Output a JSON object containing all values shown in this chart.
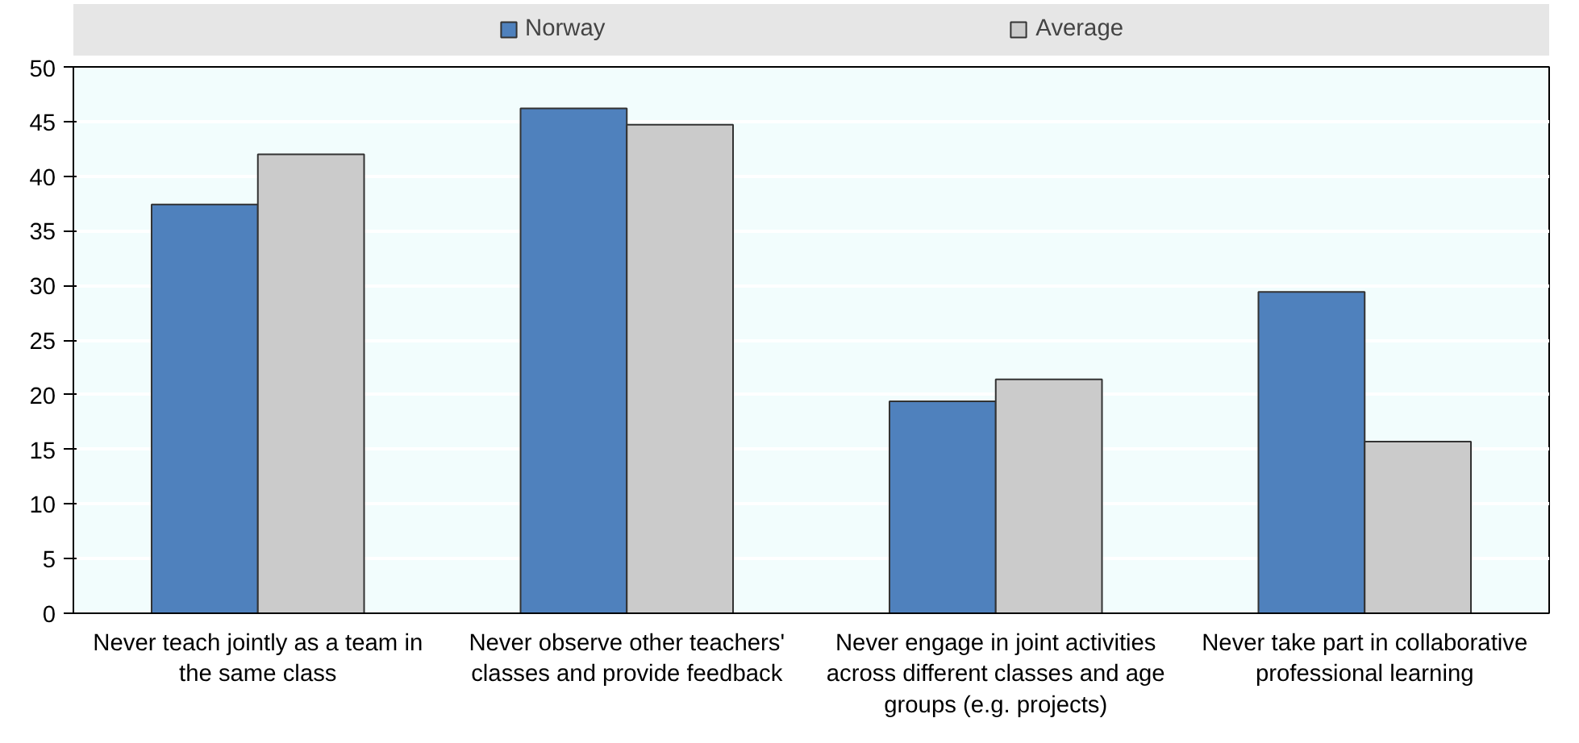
{
  "chart_data": {
    "type": "bar",
    "categories": [
      "Never teach jointly as a team in the same class",
      "Never observe other teachers' classes and provide feedback",
      "Never engage in joint activities across different classes and age groups (e.g. projects)",
      "Never take part in collaborative professional learning"
    ],
    "series": [
      {
        "name": "Norway",
        "color": "#4f81bd",
        "values": [
          37.4,
          46.2,
          19.4,
          29.4
        ]
      },
      {
        "name": "Average",
        "color": "#cbcbcb",
        "values": [
          42.0,
          44.7,
          21.4,
          15.7
        ]
      }
    ],
    "ylim": [
      0,
      50
    ],
    "yticks": [
      0,
      5,
      10,
      15,
      20,
      25,
      30,
      35,
      40,
      45,
      50
    ],
    "grid": "y",
    "legend": "top"
  }
}
